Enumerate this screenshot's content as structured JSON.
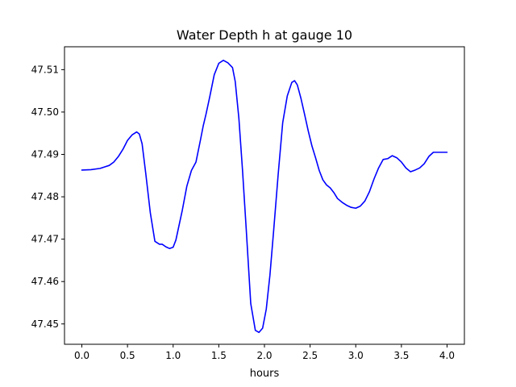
{
  "chart_data": {
    "type": "line",
    "title": "Water Depth h at gauge 10",
    "xlabel": "hours",
    "ylabel": "",
    "xlim": [
      -0.19,
      4.19
    ],
    "ylim": [
      47.4452,
      47.5154
    ],
    "x_ticks": [
      0.0,
      0.5,
      1.0,
      1.5,
      2.0,
      2.5,
      3.0,
      3.5,
      4.0
    ],
    "x_tick_labels": [
      "0.0",
      "0.5",
      "1.0",
      "1.5",
      "2.0",
      "2.5",
      "3.0",
      "3.5",
      "4.0"
    ],
    "y_ticks": [
      47.45,
      47.46,
      47.47,
      47.48,
      47.49,
      47.5,
      47.51
    ],
    "y_tick_labels": [
      "47.45",
      "47.46",
      "47.47",
      "47.48",
      "47.49",
      "47.50",
      "47.51"
    ],
    "grid": false,
    "series": [
      {
        "color": "#0000ff",
        "x": [
          0.0,
          0.1,
          0.2,
          0.3,
          0.35,
          0.4,
          0.45,
          0.5,
          0.55,
          0.6,
          0.63,
          0.66,
          0.7,
          0.75,
          0.8,
          0.85,
          0.88,
          0.92,
          0.96,
          1.0,
          1.03,
          1.06,
          1.1,
          1.15,
          1.2,
          1.25,
          1.3,
          1.33,
          1.36,
          1.4,
          1.45,
          1.5,
          1.55,
          1.6,
          1.65,
          1.68,
          1.72,
          1.76,
          1.8,
          1.85,
          1.9,
          1.94,
          1.98,
          2.02,
          2.06,
          2.1,
          2.15,
          2.2,
          2.25,
          2.3,
          2.33,
          2.36,
          2.4,
          2.44,
          2.48,
          2.52,
          2.56,
          2.6,
          2.64,
          2.68,
          2.72,
          2.76,
          2.8,
          2.85,
          2.9,
          2.95,
          3.0,
          3.05,
          3.1,
          3.15,
          3.2,
          3.25,
          3.3,
          3.35,
          3.4,
          3.45,
          3.5,
          3.55,
          3.6,
          3.65,
          3.7,
          3.75,
          3.8,
          3.85,
          3.9,
          3.95,
          4.0
        ],
        "values": [
          47.4863,
          47.4864,
          47.4867,
          47.4874,
          47.4882,
          47.4895,
          47.4912,
          47.4933,
          47.4946,
          47.4953,
          47.4948,
          47.4925,
          47.4855,
          47.4762,
          47.4695,
          47.4688,
          47.4688,
          47.4682,
          47.4678,
          47.4681,
          47.4698,
          47.4728,
          47.4768,
          47.4825,
          47.4862,
          47.4882,
          47.4935,
          47.4968,
          47.4995,
          47.5035,
          47.5088,
          47.5115,
          47.5122,
          47.5116,
          47.5105,
          47.5072,
          47.4985,
          47.4862,
          47.4725,
          47.4548,
          47.4485,
          47.448,
          47.449,
          47.4535,
          47.4615,
          47.4718,
          47.4852,
          47.4975,
          47.5038,
          47.507,
          47.5074,
          47.5064,
          47.5032,
          47.4994,
          47.4955,
          47.492,
          47.4892,
          47.4862,
          47.484,
          47.4828,
          47.4821,
          47.481,
          47.4796,
          47.4787,
          47.478,
          47.4775,
          47.4773,
          47.4778,
          47.479,
          47.4812,
          47.4842,
          47.4868,
          47.4888,
          47.489,
          47.4897,
          47.4892,
          47.4882,
          47.4868,
          47.4859,
          47.4863,
          47.4868,
          47.4878,
          47.4895,
          47.4905,
          47.4905,
          47.4905,
          47.4905
        ]
      }
    ]
  }
}
